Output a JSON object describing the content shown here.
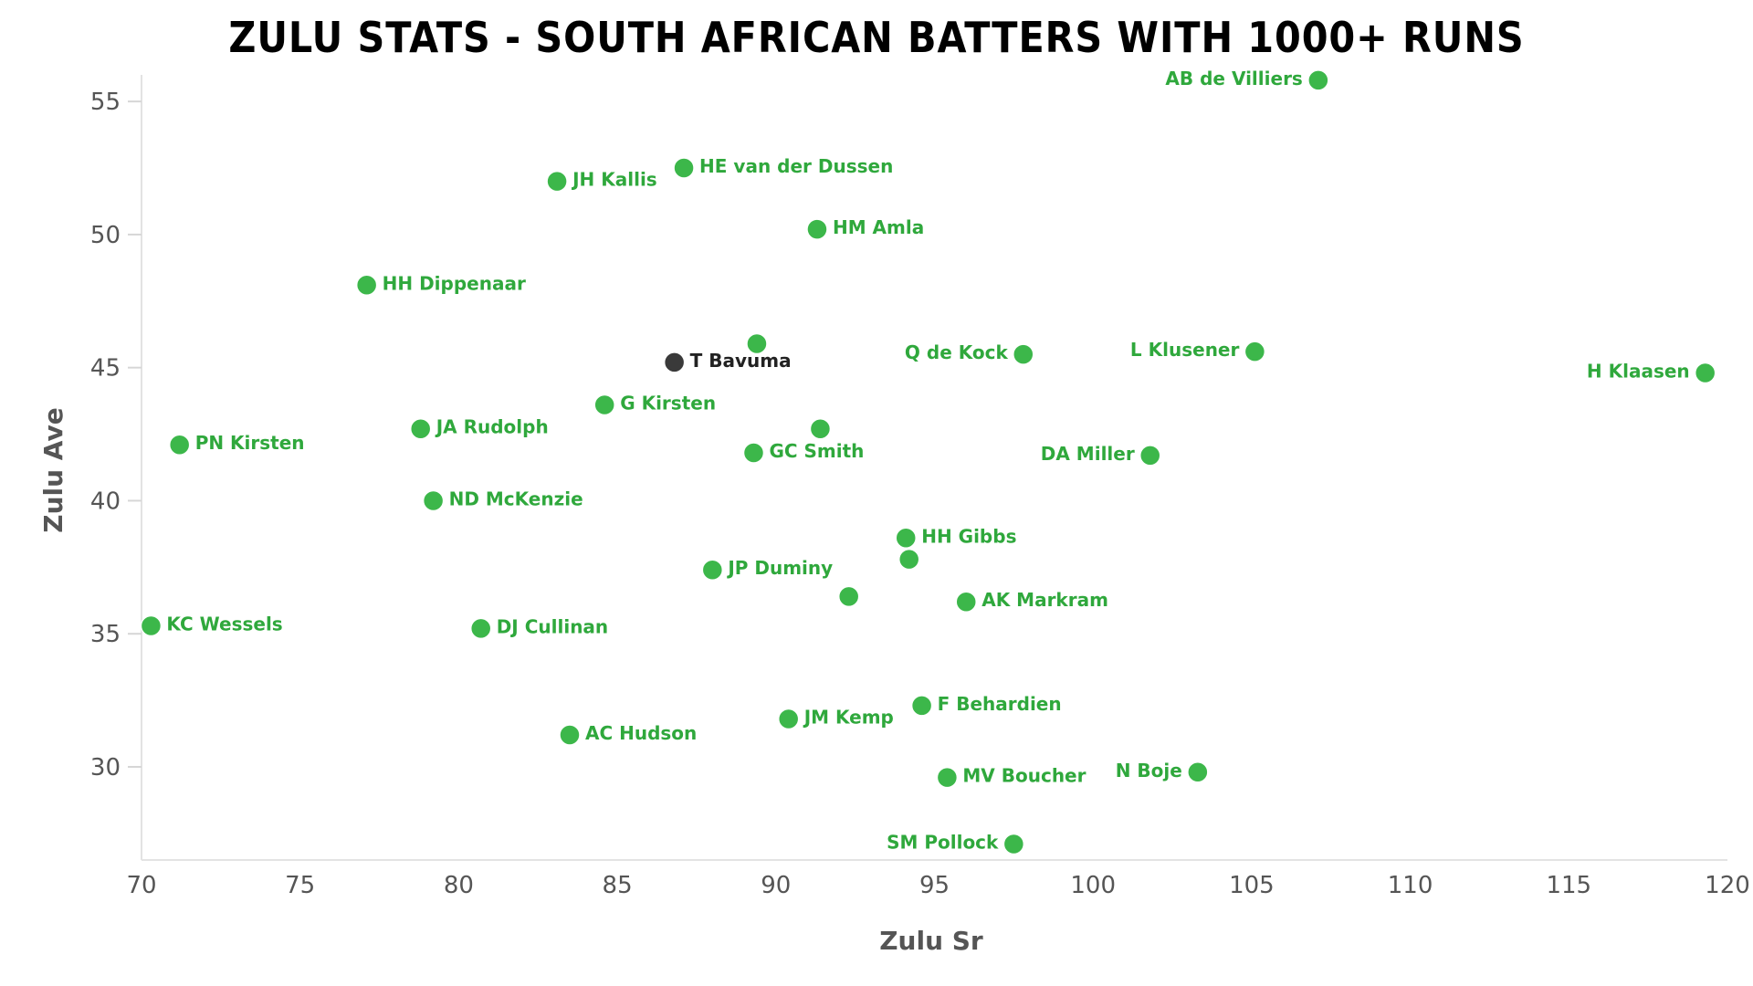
{
  "chart_data": {
    "type": "scatter",
    "title": "Zulu Stats - South African Batters with 1000+ Runs",
    "xlabel": "Zulu Sr",
    "ylabel": "Zulu Ave",
    "xlim": [
      70,
      120
    ],
    "ylim": [
      26.5,
      56
    ],
    "xticks": [
      70,
      75,
      80,
      85,
      90,
      95,
      100,
      105,
      110,
      115,
      120
    ],
    "yticks": [
      30,
      35,
      40,
      45,
      50,
      55
    ],
    "grid": false,
    "colors": {
      "default": "#3cb74a",
      "label": "#2fa83c",
      "highlight": "#3a3a3a"
    },
    "points": [
      {
        "name": "AB de Villiers",
        "x": 107.1,
        "y": 55.8
      },
      {
        "name": "HE van der Dussen",
        "x": 87.1,
        "y": 52.5
      },
      {
        "name": "JH Kallis",
        "x": 83.1,
        "y": 52.0
      },
      {
        "name": "HM Amla",
        "x": 91.3,
        "y": 50.2
      },
      {
        "name": "HH Dippenaar",
        "x": 77.1,
        "y": 48.1
      },
      {
        "name": "",
        "x": 89.4,
        "y": 45.9
      },
      {
        "name": "T Bavuma",
        "x": 86.8,
        "y": 45.2,
        "highlight": true
      },
      {
        "name": "Q de Kock",
        "x": 97.8,
        "y": 45.5
      },
      {
        "name": "L Klusener",
        "x": 105.1,
        "y": 45.6
      },
      {
        "name": "H Klaasen",
        "x": 119.3,
        "y": 44.8
      },
      {
        "name": "G Kirsten",
        "x": 84.6,
        "y": 43.6
      },
      {
        "name": "JA Rudolph",
        "x": 78.8,
        "y": 42.7
      },
      {
        "name": "",
        "x": 91.4,
        "y": 42.7
      },
      {
        "name": "PN Kirsten",
        "x": 71.2,
        "y": 42.1
      },
      {
        "name": "GC Smith",
        "x": 89.3,
        "y": 41.8
      },
      {
        "name": "DA Miller",
        "x": 101.8,
        "y": 41.7
      },
      {
        "name": "ND McKenzie",
        "x": 79.2,
        "y": 40.0
      },
      {
        "name": "HH Gibbs",
        "x": 94.1,
        "y": 38.6
      },
      {
        "name": "",
        "x": 94.2,
        "y": 37.8
      },
      {
        "name": "JP Duminy",
        "x": 88.0,
        "y": 37.4
      },
      {
        "name": "",
        "x": 92.3,
        "y": 36.4
      },
      {
        "name": "AK Markram",
        "x": 96.0,
        "y": 36.2
      },
      {
        "name": "KC Wessels",
        "x": 70.3,
        "y": 35.3
      },
      {
        "name": "DJ Cullinan",
        "x": 80.7,
        "y": 35.2
      },
      {
        "name": "F Behardien",
        "x": 94.6,
        "y": 32.3
      },
      {
        "name": "JM Kemp",
        "x": 90.4,
        "y": 31.8
      },
      {
        "name": "AC Hudson",
        "x": 83.5,
        "y": 31.2
      },
      {
        "name": "N Boje",
        "x": 103.3,
        "y": 29.8
      },
      {
        "name": "MV Boucher",
        "x": 95.4,
        "y": 29.6
      },
      {
        "name": "SM Pollock",
        "x": 97.5,
        "y": 27.1
      }
    ]
  }
}
